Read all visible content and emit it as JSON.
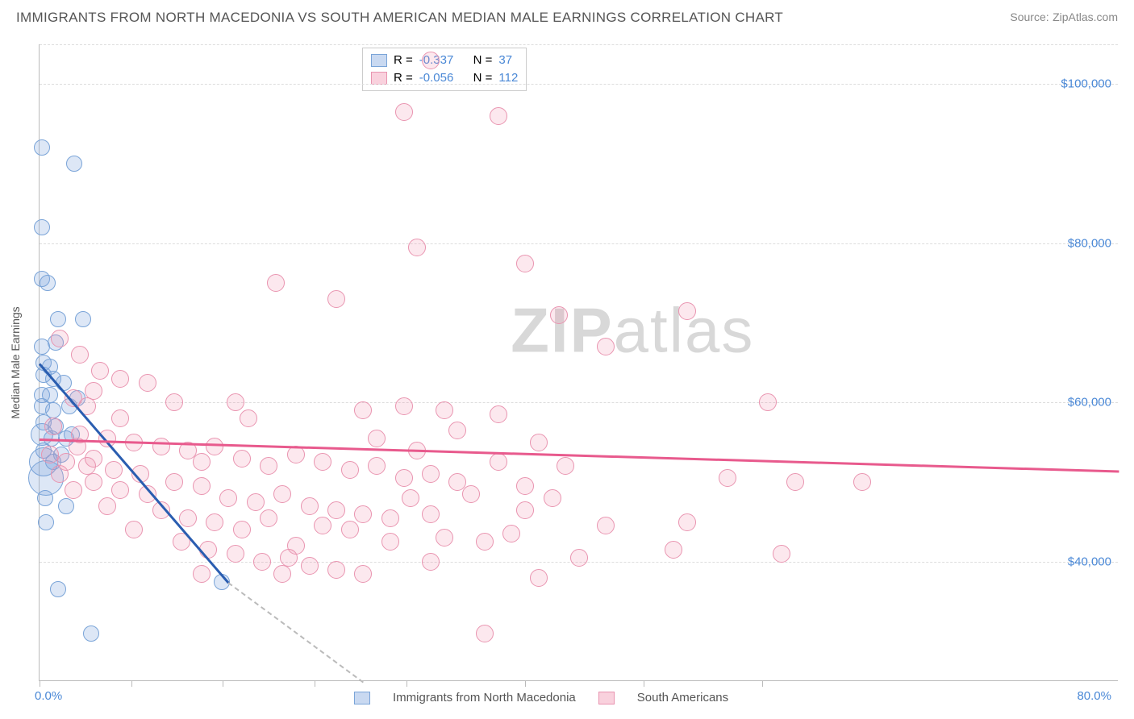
{
  "title": "IMMIGRANTS FROM NORTH MACEDONIA VS SOUTH AMERICAN MEDIAN MALE EARNINGS CORRELATION CHART",
  "source_label": "Source:",
  "source_name": "ZipAtlas.com",
  "y_axis_title": "Median Male Earnings",
  "watermark_a": "ZIP",
  "watermark_b": "atlas",
  "chart": {
    "type": "scatter",
    "xlim": [
      0,
      80
    ],
    "ylim": [
      25000,
      105000
    ],
    "x_tick_labels": {
      "left": "0.0%",
      "right": "80.0%"
    },
    "x_tick_positions_pct": [
      0,
      8.5,
      17,
      25.5,
      34,
      45,
      56,
      67
    ],
    "y_ticks": [
      {
        "value": 40000,
        "label": "$40,000"
      },
      {
        "value": 60000,
        "label": "$60,000"
      },
      {
        "value": 80000,
        "label": "$80,000"
      },
      {
        "value": 100000,
        "label": "$100,000"
      }
    ],
    "grid_color": "#dddddd",
    "axis_color": "#bbbbbb",
    "tick_label_color": "#4a88d6",
    "background_color": "#ffffff",
    "series": [
      {
        "name": "Immigrants from North Macedonia",
        "key": "blue",
        "fill": "rgba(120,160,220,0.25)",
        "stroke": "#7aa4d8",
        "R": "-0.337",
        "N": "37",
        "trend": {
          "x1": 0,
          "y1": 65000,
          "x2": 14,
          "y2": 37500,
          "extend_to_x": 24,
          "color": "#2a5db0"
        },
        "points": [
          {
            "x": 0.2,
            "y": 92000,
            "r": 10
          },
          {
            "x": 2.6,
            "y": 90000,
            "r": 10
          },
          {
            "x": 0.2,
            "y": 82000,
            "r": 10
          },
          {
            "x": 0.2,
            "y": 75500,
            "r": 10
          },
          {
            "x": 0.6,
            "y": 75000,
            "r": 10
          },
          {
            "x": 1.4,
            "y": 70500,
            "r": 10
          },
          {
            "x": 3.2,
            "y": 70500,
            "r": 10
          },
          {
            "x": 0.2,
            "y": 67000,
            "r": 10
          },
          {
            "x": 1.2,
            "y": 67500,
            "r": 10
          },
          {
            "x": 0.3,
            "y": 65000,
            "r": 10
          },
          {
            "x": 0.3,
            "y": 63500,
            "r": 10
          },
          {
            "x": 1.0,
            "y": 63000,
            "r": 10
          },
          {
            "x": 1.8,
            "y": 62500,
            "r": 10
          },
          {
            "x": 0.2,
            "y": 61000,
            "r": 10
          },
          {
            "x": 0.8,
            "y": 61000,
            "r": 10
          },
          {
            "x": 0.2,
            "y": 59500,
            "r": 10
          },
          {
            "x": 1.0,
            "y": 59000,
            "r": 10
          },
          {
            "x": 2.2,
            "y": 59500,
            "r": 10
          },
          {
            "x": 0.3,
            "y": 57500,
            "r": 10
          },
          {
            "x": 1.2,
            "y": 57000,
            "r": 10
          },
          {
            "x": 0.2,
            "y": 56000,
            "r": 14
          },
          {
            "x": 0.9,
            "y": 55500,
            "r": 10
          },
          {
            "x": 2.0,
            "y": 55500,
            "r": 10
          },
          {
            "x": 0.3,
            "y": 54000,
            "r": 10
          },
          {
            "x": 0.3,
            "y": 52500,
            "r": 18
          },
          {
            "x": 1.0,
            "y": 52500,
            "r": 10
          },
          {
            "x": 0.4,
            "y": 48000,
            "r": 10
          },
          {
            "x": 2.0,
            "y": 47000,
            "r": 10
          },
          {
            "x": 0.5,
            "y": 45000,
            "r": 10
          },
          {
            "x": 1.4,
            "y": 36500,
            "r": 10
          },
          {
            "x": 13.5,
            "y": 37500,
            "r": 10
          },
          {
            "x": 3.8,
            "y": 31000,
            "r": 10
          },
          {
            "x": 2.4,
            "y": 56000,
            "r": 10
          },
          {
            "x": 0.5,
            "y": 50500,
            "r": 22
          },
          {
            "x": 1.6,
            "y": 53500,
            "r": 10
          },
          {
            "x": 0.8,
            "y": 64500,
            "r": 10
          },
          {
            "x": 2.8,
            "y": 60500,
            "r": 10
          }
        ]
      },
      {
        "name": "South Americans",
        "key": "pink",
        "fill": "rgba(240,140,170,0.20)",
        "stroke": "#e994b0",
        "R": "-0.056",
        "N": "112",
        "trend": {
          "x1": 0,
          "y1": 55500,
          "x2": 80,
          "y2": 51500,
          "color": "#e85a8d"
        },
        "points": [
          {
            "x": 29,
            "y": 103000,
            "r": 11
          },
          {
            "x": 27,
            "y": 96500,
            "r": 11
          },
          {
            "x": 34,
            "y": 96000,
            "r": 11
          },
          {
            "x": 28,
            "y": 79500,
            "r": 11
          },
          {
            "x": 36,
            "y": 77500,
            "r": 11
          },
          {
            "x": 17.5,
            "y": 75000,
            "r": 11
          },
          {
            "x": 22,
            "y": 73000,
            "r": 11
          },
          {
            "x": 38.5,
            "y": 71000,
            "r": 11
          },
          {
            "x": 48,
            "y": 71500,
            "r": 11
          },
          {
            "x": 1.5,
            "y": 68000,
            "r": 11
          },
          {
            "x": 3.0,
            "y": 66000,
            "r": 11
          },
          {
            "x": 4.5,
            "y": 64000,
            "r": 11
          },
          {
            "x": 6,
            "y": 63000,
            "r": 11
          },
          {
            "x": 8,
            "y": 62500,
            "r": 11
          },
          {
            "x": 4,
            "y": 61500,
            "r": 11
          },
          {
            "x": 2.5,
            "y": 60500,
            "r": 11
          },
          {
            "x": 10,
            "y": 60000,
            "r": 11
          },
          {
            "x": 14.5,
            "y": 60000,
            "r": 11
          },
          {
            "x": 15.5,
            "y": 58000,
            "r": 11
          },
          {
            "x": 24,
            "y": 59000,
            "r": 11
          },
          {
            "x": 27,
            "y": 59500,
            "r": 11
          },
          {
            "x": 30,
            "y": 59000,
            "r": 11
          },
          {
            "x": 34,
            "y": 58500,
            "r": 11
          },
          {
            "x": 1,
            "y": 57000,
            "r": 11
          },
          {
            "x": 3,
            "y": 56000,
            "r": 11
          },
          {
            "x": 5,
            "y": 55500,
            "r": 11
          },
          {
            "x": 7,
            "y": 55000,
            "r": 11
          },
          {
            "x": 9,
            "y": 54500,
            "r": 11
          },
          {
            "x": 11,
            "y": 54000,
            "r": 11
          },
          {
            "x": 13,
            "y": 54500,
            "r": 11
          },
          {
            "x": 12,
            "y": 52500,
            "r": 11
          },
          {
            "x": 15,
            "y": 53000,
            "r": 11
          },
          {
            "x": 17,
            "y": 52000,
            "r": 11
          },
          {
            "x": 19,
            "y": 53500,
            "r": 11
          },
          {
            "x": 21,
            "y": 52500,
            "r": 11
          },
          {
            "x": 23,
            "y": 51500,
            "r": 11
          },
          {
            "x": 25,
            "y": 52000,
            "r": 11
          },
          {
            "x": 27,
            "y": 50500,
            "r": 11
          },
          {
            "x": 29,
            "y": 51000,
            "r": 11
          },
          {
            "x": 31,
            "y": 50000,
            "r": 11
          },
          {
            "x": 2,
            "y": 52500,
            "r": 11
          },
          {
            "x": 4,
            "y": 53000,
            "r": 11
          },
          {
            "x": 5.5,
            "y": 51500,
            "r": 11
          },
          {
            "x": 7.5,
            "y": 51000,
            "r": 11
          },
          {
            "x": 10,
            "y": 50000,
            "r": 11
          },
          {
            "x": 8,
            "y": 48500,
            "r": 11
          },
          {
            "x": 6,
            "y": 49000,
            "r": 11
          },
          {
            "x": 12,
            "y": 49500,
            "r": 11
          },
          {
            "x": 14,
            "y": 48000,
            "r": 11
          },
          {
            "x": 16,
            "y": 47500,
            "r": 11
          },
          {
            "x": 18,
            "y": 48500,
            "r": 11
          },
          {
            "x": 20,
            "y": 47000,
            "r": 11
          },
          {
            "x": 22,
            "y": 46500,
            "r": 11
          },
          {
            "x": 24,
            "y": 46000,
            "r": 11
          },
          {
            "x": 26,
            "y": 45500,
            "r": 11
          },
          {
            "x": 9,
            "y": 46500,
            "r": 11
          },
          {
            "x": 11,
            "y": 45500,
            "r": 11
          },
          {
            "x": 13,
            "y": 45000,
            "r": 11
          },
          {
            "x": 15,
            "y": 44000,
            "r": 11
          },
          {
            "x": 17,
            "y": 45500,
            "r": 11
          },
          {
            "x": 21,
            "y": 44500,
            "r": 11
          },
          {
            "x": 23,
            "y": 44000,
            "r": 11
          },
          {
            "x": 30,
            "y": 43000,
            "r": 11
          },
          {
            "x": 33,
            "y": 42500,
            "r": 11
          },
          {
            "x": 35,
            "y": 43500,
            "r": 11
          },
          {
            "x": 7,
            "y": 44000,
            "r": 11
          },
          {
            "x": 10.5,
            "y": 42500,
            "r": 11
          },
          {
            "x": 12.5,
            "y": 41500,
            "r": 11
          },
          {
            "x": 14.5,
            "y": 41000,
            "r": 11
          },
          {
            "x": 16.5,
            "y": 40000,
            "r": 11
          },
          {
            "x": 18.5,
            "y": 40500,
            "r": 11
          },
          {
            "x": 20,
            "y": 39500,
            "r": 11
          },
          {
            "x": 22,
            "y": 39000,
            "r": 11
          },
          {
            "x": 29,
            "y": 40000,
            "r": 11
          },
          {
            "x": 12,
            "y": 38500,
            "r": 11
          },
          {
            "x": 18,
            "y": 38500,
            "r": 11
          },
          {
            "x": 24,
            "y": 38500,
            "r": 11
          },
          {
            "x": 37,
            "y": 38000,
            "r": 11
          },
          {
            "x": 36,
            "y": 46500,
            "r": 11
          },
          {
            "x": 38,
            "y": 48000,
            "r": 11
          },
          {
            "x": 40,
            "y": 40500,
            "r": 11
          },
          {
            "x": 42,
            "y": 44500,
            "r": 11
          },
          {
            "x": 37,
            "y": 55000,
            "r": 11
          },
          {
            "x": 42,
            "y": 67000,
            "r": 11
          },
          {
            "x": 34,
            "y": 52500,
            "r": 11
          },
          {
            "x": 39,
            "y": 52000,
            "r": 11
          },
          {
            "x": 32,
            "y": 48500,
            "r": 11
          },
          {
            "x": 29,
            "y": 46000,
            "r": 11
          },
          {
            "x": 36,
            "y": 49500,
            "r": 11
          },
          {
            "x": 54,
            "y": 60000,
            "r": 11
          },
          {
            "x": 56,
            "y": 50000,
            "r": 11
          },
          {
            "x": 55,
            "y": 41000,
            "r": 11
          },
          {
            "x": 51,
            "y": 50500,
            "r": 11
          },
          {
            "x": 48,
            "y": 45000,
            "r": 11
          },
          {
            "x": 47,
            "y": 41500,
            "r": 11
          },
          {
            "x": 33,
            "y": 31000,
            "r": 11
          },
          {
            "x": 61,
            "y": 50000,
            "r": 11
          },
          {
            "x": 6,
            "y": 58000,
            "r": 11
          },
          {
            "x": 3.5,
            "y": 59500,
            "r": 11
          },
          {
            "x": 5,
            "y": 47000,
            "r": 11
          },
          {
            "x": 4,
            "y": 50000,
            "r": 11
          },
          {
            "x": 2.5,
            "y": 49000,
            "r": 11
          },
          {
            "x": 19,
            "y": 42000,
            "r": 11
          },
          {
            "x": 26,
            "y": 42500,
            "r": 11
          },
          {
            "x": 0.8,
            "y": 53500,
            "r": 11
          },
          {
            "x": 1.5,
            "y": 51000,
            "r": 11
          },
          {
            "x": 2.8,
            "y": 54500,
            "r": 11
          },
          {
            "x": 3.5,
            "y": 52000,
            "r": 11
          },
          {
            "x": 27.5,
            "y": 48000,
            "r": 11
          },
          {
            "x": 31,
            "y": 56500,
            "r": 11
          },
          {
            "x": 25,
            "y": 55500,
            "r": 11
          },
          {
            "x": 28,
            "y": 54000,
            "r": 11
          }
        ]
      }
    ]
  },
  "legend": {
    "series1_label": "Immigrants from North Macedonia",
    "series2_label": "South Americans"
  },
  "stats_labels": {
    "R": "R  =",
    "N": "N  ="
  }
}
